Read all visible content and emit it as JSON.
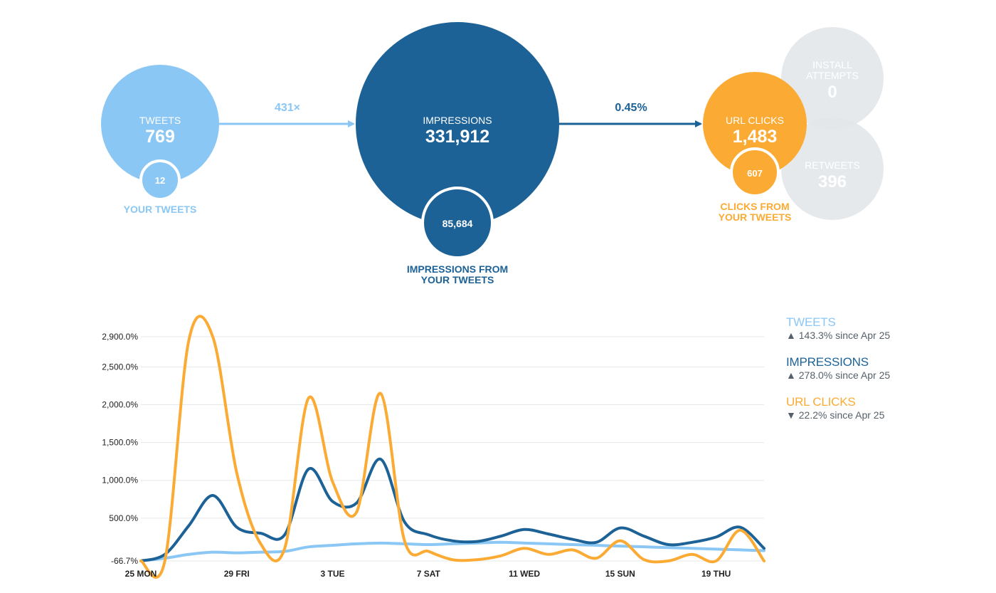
{
  "colors": {
    "tweets": "#8ac7f5",
    "impressions": "#1d6296",
    "clicks": "#fbab34",
    "muted": "#e3e7ea"
  },
  "funnel": {
    "tweets": {
      "label": "TWEETS",
      "value": "769",
      "sub_value": "12",
      "sub_label": "YOUR TWEETS"
    },
    "arrow1_label": "431×",
    "impressions": {
      "label": "IMPRESSIONS",
      "value": "331,912",
      "sub_value": "85,684",
      "sub_label_line1": "IMPRESSIONS FROM",
      "sub_label_line2": "YOUR TWEETS"
    },
    "arrow2_label": "0.45%",
    "url_clicks": {
      "label": "URL CLICKS",
      "value": "1,483",
      "sub_value": "607",
      "sub_label_line1": "CLICKS FROM",
      "sub_label_line2": "YOUR TWEETS"
    },
    "install_attempts": {
      "label_line1": "INSTALL",
      "label_line2": "ATTEMPTS",
      "value": "0"
    },
    "retweets": {
      "label": "RETWEETS",
      "value": "396"
    }
  },
  "legend": [
    {
      "name": "TWEETS",
      "arrow": "▲",
      "change": "143.3% since Apr 25",
      "color": "#8ac7f5"
    },
    {
      "name": "IMPRESSIONS",
      "arrow": "▲",
      "change": "278.0% since Apr 25",
      "color": "#1d6296"
    },
    {
      "name": "URL CLICKS",
      "arrow": "▼",
      "change": "22.2% since Apr 25",
      "color": "#fbab34"
    }
  ],
  "chart_data": {
    "type": "line",
    "y_unit": "%",
    "yticks": [
      -66.7,
      500,
      1000,
      1500,
      2000,
      2500,
      2900
    ],
    "ytick_labels": [
      "-66.7%",
      "500.0%",
      "1,000.0%",
      "1,500.0%",
      "2,000.0%",
      "2,500.0%",
      "2,900.0%"
    ],
    "ylim": [
      -66.7,
      2900
    ],
    "x": [
      "Apr 25",
      "Apr 26",
      "Apr 27",
      "Apr 28",
      "Apr 29",
      "Apr 30",
      "May 1",
      "May 2",
      "May 3",
      "May 4",
      "May 5",
      "May 6",
      "May 7",
      "May 8",
      "May 9",
      "May 10",
      "May 11",
      "May 12",
      "May 13",
      "May 14",
      "May 15",
      "May 16",
      "May 17",
      "May 18",
      "May 19",
      "May 20",
      "May 21"
    ],
    "xtick_labels": [
      {
        "index": 0,
        "label": "25 MON"
      },
      {
        "index": 4,
        "label": "29 FRI"
      },
      {
        "index": 8,
        "label": "3 TUE"
      },
      {
        "index": 12,
        "label": "7 SAT"
      },
      {
        "index": 16,
        "label": "11 WED"
      },
      {
        "index": 20,
        "label": "15 SUN"
      },
      {
        "index": 24,
        "label": "19 THU"
      }
    ],
    "grid": true,
    "legend_position": "right",
    "series": [
      {
        "name": "TWEETS",
        "values": [
          -66.7,
          -30,
          20,
          50,
          40,
          50,
          60,
          120,
          140,
          160,
          170,
          160,
          150,
          160,
          170,
          180,
          170,
          160,
          150,
          140,
          130,
          120,
          110,
          100,
          90,
          80,
          70
        ]
      },
      {
        "name": "IMPRESSIONS",
        "values": [
          -66.7,
          20,
          400,
          800,
          380,
          300,
          280,
          1150,
          720,
          700,
          1280,
          450,
          280,
          200,
          190,
          260,
          350,
          290,
          220,
          180,
          370,
          260,
          150,
          180,
          250,
          380,
          100
        ]
      },
      {
        "name": "URL CLICKS",
        "values": [
          -66.7,
          -66.7,
          2850,
          2900,
          1100,
          160,
          100,
          2090,
          980,
          580,
          2150,
          200,
          60,
          -50,
          -50,
          0,
          100,
          20,
          80,
          -30,
          200,
          -50,
          -66.7,
          20,
          -66.7,
          340,
          -66.7
        ]
      }
    ]
  }
}
